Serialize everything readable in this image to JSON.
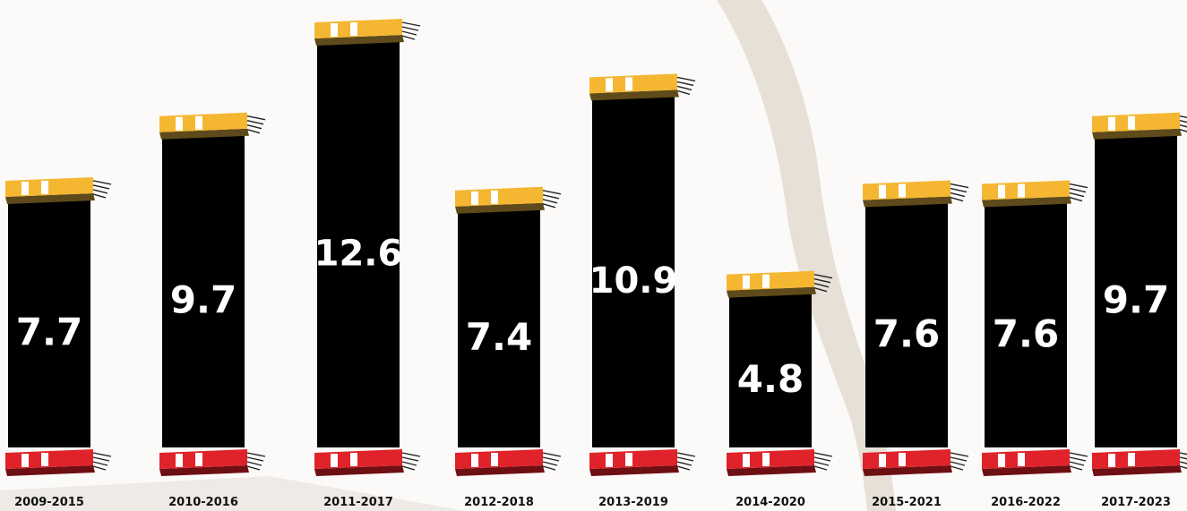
{
  "chart_data": {
    "type": "bar",
    "categories": [
      "2009-2015",
      "2010-2016",
      "2011-2017",
      "2012-2018",
      "2013-2019",
      "2014-2020",
      "2015-2021",
      "2016-2022",
      "2017-2023"
    ],
    "values": [
      7.7,
      9.7,
      12.6,
      7.4,
      10.9,
      4.8,
      7.6,
      7.6,
      9.7
    ],
    "value_labels": [
      "7.7",
      "9.7",
      "12.6",
      "7.4",
      "10.9",
      "4.8",
      "7.6",
      "7.6",
      "9.7"
    ],
    "title": "",
    "xlabel": "",
    "ylabel": "",
    "ylim": [
      0,
      12.6
    ],
    "grid": false,
    "legend": "none"
  },
  "colors": {
    "bar": "#000000",
    "top_book_cover": "#f5b731",
    "top_book_spine": "#5e4a1a",
    "bottom_book_cover": "#e0232a",
    "bottom_book_spine": "#6e0f14",
    "book_pages": "#ffffff",
    "background": "#fbfaf8"
  },
  "icons": {
    "top": "book-stack-icon",
    "bottom": "book-stack-icon"
  }
}
